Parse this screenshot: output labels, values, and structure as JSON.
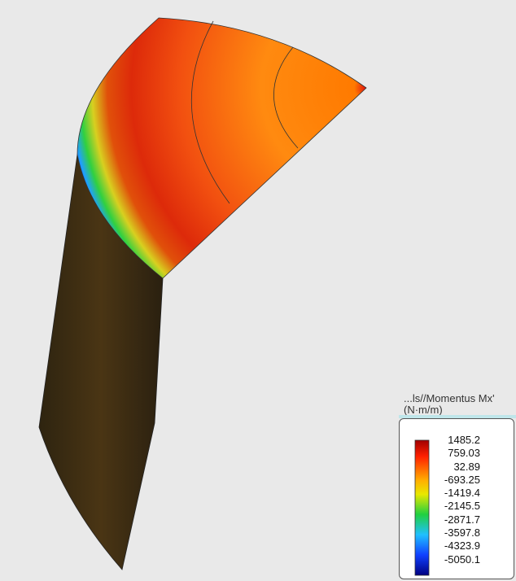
{
  "legend": {
    "title": "...ls//Momentus Mx'",
    "unit": "(N·m/m)",
    "labels": [
      "1485.2",
      "759.03",
      "32.89",
      "-693.25",
      "-1419.4",
      "-2145.5",
      "-2871.7",
      "-3597.8",
      "-4323.9",
      "-5050.1"
    ]
  }
}
